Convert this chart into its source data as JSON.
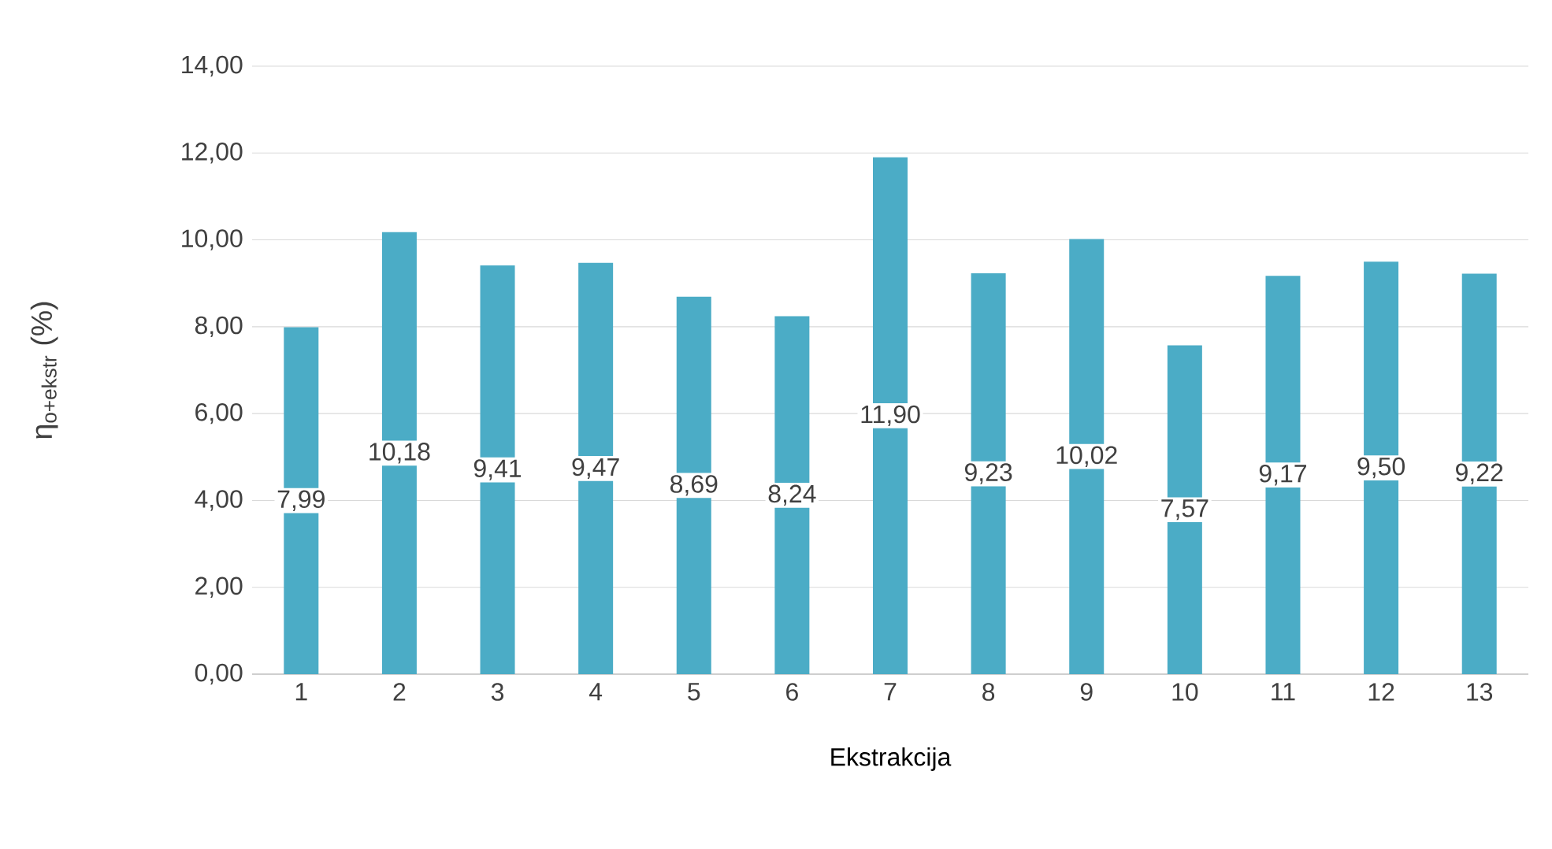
{
  "chart_data": {
    "type": "bar",
    "xlabel": "Ekstrakcija",
    "ylabel": "η$_{o+ekstr}$ (%)",
    "categories": [
      "1",
      "2",
      "3",
      "4",
      "5",
      "6",
      "7",
      "8",
      "9",
      "10",
      "11",
      "12",
      "13"
    ],
    "values": [
      7.99,
      10.18,
      9.41,
      9.47,
      8.69,
      8.24,
      11.9,
      9.23,
      10.02,
      7.57,
      9.17,
      9.5,
      9.22
    ],
    "value_labels": [
      "7,99",
      "10,18",
      "9,41",
      "9,47",
      "8,69",
      "8,24",
      "11,90",
      "9,23",
      "10,02",
      "7,57",
      "9,17",
      "9,50",
      "9,22"
    ],
    "color": "#4bacc6",
    "ylim": [
      0,
      14
    ],
    "yticks": [
      {
        "value": 0,
        "label": "0,00"
      },
      {
        "value": 2,
        "label": "2,00"
      },
      {
        "value": 4,
        "label": "4,00"
      },
      {
        "value": 6,
        "label": "6,00"
      },
      {
        "value": 8,
        "label": "8,00"
      },
      {
        "value": 10,
        "label": "10,00"
      },
      {
        "value": 12,
        "label": "12,00"
      },
      {
        "value": 14,
        "label": "14,00"
      }
    ],
    "grid": "y"
  }
}
